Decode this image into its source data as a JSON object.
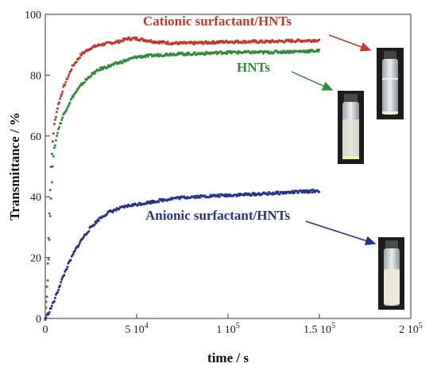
{
  "chart_data": {
    "type": "scatter",
    "title": "",
    "xlabel": "time / s",
    "ylabel": "Transmittance / %",
    "xlim": [
      0,
      200000
    ],
    "ylim": [
      0,
      100
    ],
    "x_ticks": [
      {
        "value": 0,
        "label": "0"
      },
      {
        "value": 50000,
        "label": "5 10",
        "exp": "4"
      },
      {
        "value": 100000,
        "label": "1 10",
        "exp": "5"
      },
      {
        "value": 150000,
        "label": "1.5 10",
        "exp": "5"
      },
      {
        "value": 200000,
        "label": "2 10",
        "exp": "5"
      }
    ],
    "y_ticks": [
      0,
      20,
      40,
      60,
      80,
      100
    ],
    "grid": false,
    "legend": "inline annotations with arrows pointing to vial photographs",
    "series": [
      {
        "name": "Cationic surfactant/HNTs",
        "color": "#c0392b",
        "points": [
          [
            0,
            0
          ],
          [
            1000,
            12
          ],
          [
            2000,
            30
          ],
          [
            3000,
            48
          ],
          [
            4000,
            58
          ],
          [
            5000,
            64
          ],
          [
            7000,
            70
          ],
          [
            10000,
            76
          ],
          [
            15000,
            83
          ],
          [
            20000,
            87
          ],
          [
            25000,
            89
          ],
          [
            30000,
            90
          ],
          [
            40000,
            91
          ],
          [
            45000,
            92
          ],
          [
            50000,
            92
          ],
          [
            55000,
            91.5
          ],
          [
            60000,
            91
          ],
          [
            70000,
            90.5
          ],
          [
            80000,
            90.5
          ],
          [
            100000,
            91
          ],
          [
            120000,
            91
          ],
          [
            150000,
            91.5
          ]
        ]
      },
      {
        "name": "HNTs",
        "color": "#2e8b3c",
        "points": [
          [
            0,
            0
          ],
          [
            1000,
            8
          ],
          [
            2000,
            22
          ],
          [
            3000,
            38
          ],
          [
            4000,
            50
          ],
          [
            5000,
            56
          ],
          [
            7000,
            62
          ],
          [
            10000,
            67
          ],
          [
            15000,
            73
          ],
          [
            20000,
            77
          ],
          [
            25000,
            80
          ],
          [
            30000,
            82
          ],
          [
            40000,
            84
          ],
          [
            50000,
            86
          ],
          [
            60000,
            86.5
          ],
          [
            70000,
            87
          ],
          [
            80000,
            87
          ],
          [
            100000,
            87.5
          ],
          [
            120000,
            87.5
          ],
          [
            150000,
            88
          ]
        ]
      },
      {
        "name": "Anionic surfactant/HNTs",
        "color": "#26338c",
        "points": [
          [
            0,
            0
          ],
          [
            2000,
            2
          ],
          [
            5000,
            6
          ],
          [
            8000,
            11
          ],
          [
            12000,
            17
          ],
          [
            16000,
            22
          ],
          [
            20000,
            26
          ],
          [
            25000,
            30
          ],
          [
            30000,
            33
          ],
          [
            35000,
            35
          ],
          [
            40000,
            36
          ],
          [
            45000,
            37
          ],
          [
            50000,
            37.5
          ],
          [
            60000,
            38.5
          ],
          [
            70000,
            39.5
          ],
          [
            80000,
            40
          ],
          [
            100000,
            40.5
          ],
          [
            120000,
            41
          ],
          [
            150000,
            42
          ]
        ]
      }
    ]
  }
}
